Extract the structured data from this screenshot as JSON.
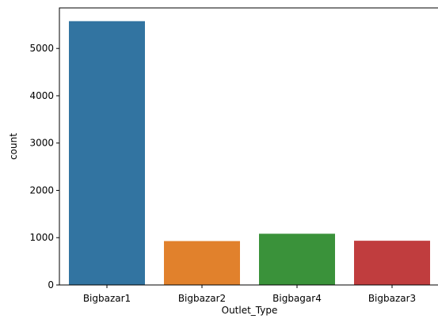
{
  "chart_data": {
    "type": "bar",
    "xlabel": "Outlet_Type",
    "ylabel": "count",
    "categories": [
      "Bigbazar1",
      "Bigbazar2",
      "Bigbagar4",
      "Bigbazar3"
    ],
    "values": [
      5577,
      928,
      1083,
      935
    ],
    "colors": [
      "#3274a1",
      "#e1812c",
      "#3a923a",
      "#c03d3e"
    ],
    "ylim": [
      0,
      5857
    ],
    "yticks": [
      0,
      1000,
      2000,
      3000,
      4000,
      5000
    ],
    "grid": false
  }
}
